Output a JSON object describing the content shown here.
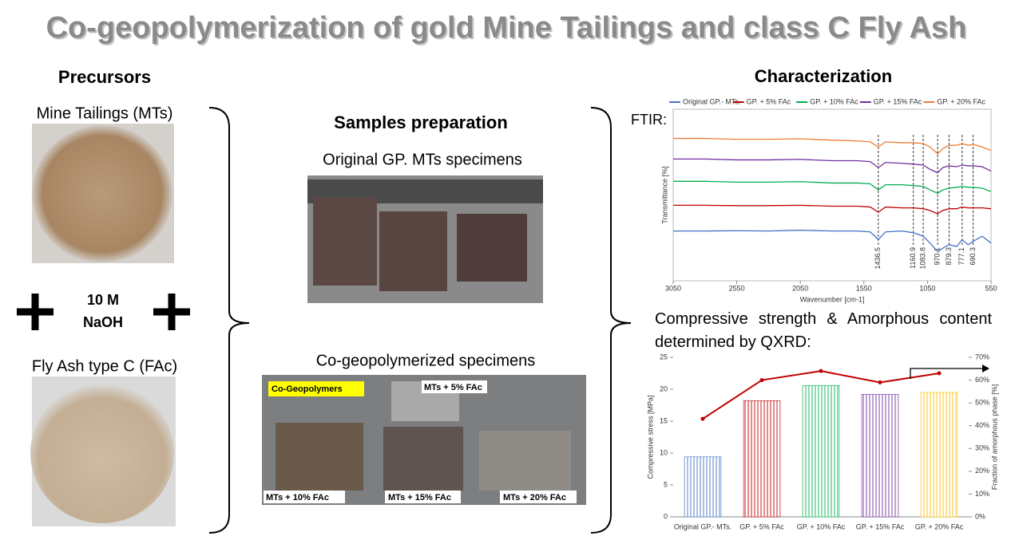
{
  "header": {
    "title": "Co-geopolymerization of gold Mine Tailings and class C Fly Ash"
  },
  "precursors": {
    "heading": "Precursors",
    "mine_tailings": "Mine Tailings (MTs)",
    "activator": [
      "10 M",
      "NaOH"
    ],
    "fly_ash": "Fly Ash type C (FAc)"
  },
  "samples": {
    "heading": "Samples preparation",
    "original": "Original GP. MTs specimens",
    "co_geo": "Co-geopolymerized specimens",
    "photo_labels": [
      "Co-Geopolymers",
      "MTs + 5% FAc",
      "MTs + 10% FAc",
      "MTs + 15% FAc",
      "MTs + 20% FAc"
    ]
  },
  "characterization": {
    "heading": "Characterization",
    "ftir": "FTIR:",
    "strength": "Compressive strength & Amorphous content determined by QXRD:"
  },
  "chart_data": [
    {
      "type": "line",
      "xlabel": "Wavenumber [cm-1]",
      "ylabel": "Transmittance [%]",
      "x": [
        3050,
        2800,
        2550,
        2300,
        2050,
        1800,
        1600,
        1500,
        1436.5,
        1380,
        1250,
        1160.9,
        1083.8,
        1030,
        970.1,
        930,
        879.3,
        820,
        777.1,
        730,
        690.3,
        620,
        550
      ],
      "xlim": [
        3050,
        550
      ],
      "xticks": [
        3050,
        2550,
        2050,
        1550,
        1050,
        550
      ],
      "ylim": [
        0,
        100
      ],
      "peaks": [
        1436.5,
        1160.9,
        1083.8,
        970.1,
        879.3,
        777.1,
        690.3
      ],
      "series": [
        {
          "name": "Original GP.- MTs.",
          "color": "#4472c4",
          "values": [
            29,
            29,
            29.2,
            29,
            29.5,
            29,
            29,
            28.5,
            24,
            28.5,
            29,
            28,
            26,
            22,
            17,
            19,
            21,
            20,
            24,
            21,
            23,
            26,
            22
          ]
        },
        {
          "name": "GP. + 5% FAc",
          "color": "#c00000",
          "values": [
            44,
            44,
            43.8,
            43.8,
            44,
            43.5,
            43.5,
            43,
            40,
            43,
            42.5,
            42.5,
            42,
            41,
            39,
            41,
            42,
            42,
            43,
            42.5,
            42.5,
            42.5,
            42
          ]
        },
        {
          "name": "GP. + 10% FAc",
          "color": "#00b050",
          "values": [
            58,
            58,
            57.5,
            57.5,
            57.8,
            57,
            57,
            56.5,
            53,
            56,
            56,
            55.5,
            55,
            53,
            51,
            53,
            54,
            54.5,
            55,
            54.5,
            54.5,
            54,
            52
          ]
        },
        {
          "name": "GP. + 15% FAc",
          "color": "#7030a0",
          "values": [
            71,
            71,
            70.5,
            70.5,
            70.8,
            70,
            70,
            69.5,
            66,
            69,
            68.5,
            68,
            67.5,
            65,
            63,
            66,
            67,
            66.5,
            67.5,
            67,
            67,
            66.5,
            64
          ]
        },
        {
          "name": "GP. + 20% FAc",
          "color": "#ed7d31",
          "values": [
            83,
            83,
            82.5,
            82.5,
            82.8,
            82,
            81.5,
            81,
            78,
            81,
            80.5,
            80.5,
            80,
            78,
            74,
            77,
            79,
            79,
            80,
            79,
            79.5,
            78,
            76
          ]
        }
      ]
    },
    {
      "type": "bar",
      "ylabel": "Compressive stress  [MPa]",
      "y2label": "Fraction of amorphous phase [%]",
      "categories": [
        "Original GP.- MTs.",
        "GP. + 5% FAc",
        "GP. + 10% FAc",
        "GP. + 15% FAc",
        "GP. + 20% FAc"
      ],
      "values": [
        9.4,
        18.2,
        20.6,
        19.2,
        19.5
      ],
      "colors": [
        "#4472c4",
        "#c00000",
        "#00b050",
        "#7030a0",
        "#ffc000"
      ],
      "ylim": [
        0,
        25
      ],
      "yticks": [
        0,
        5,
        10,
        15,
        20,
        25
      ],
      "y2lim": [
        0,
        70
      ],
      "y2ticks": [
        {
          "value": 0,
          "label": "0%"
        },
        {
          "value": 10,
          "label": "10%"
        },
        {
          "value": 20,
          "label": "20%"
        },
        {
          "value": 30,
          "label": "30%"
        },
        {
          "value": 40,
          "label": "40%"
        },
        {
          "value": 50,
          "label": "50%"
        },
        {
          "value": 60,
          "label": "60%"
        },
        {
          "value": 70,
          "label": "70%"
        }
      ],
      "line": {
        "values": [
          43,
          60,
          64,
          59,
          63
        ],
        "color": "#c00000",
        "axis": "y2"
      }
    }
  ]
}
